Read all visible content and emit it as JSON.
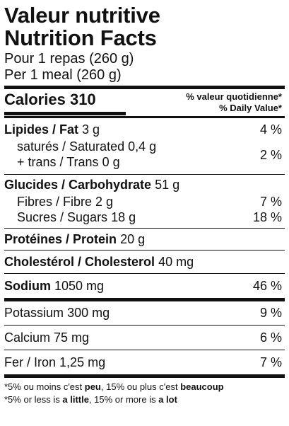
{
  "title_fr": "Valeur nutritive",
  "title_en": "Nutrition Facts",
  "serving_fr": "Pour 1 repas (260 g)",
  "serving_en": "Per 1 meal (260 g)",
  "calories_label": "Calories",
  "calories_value": "310",
  "dv_header_fr": "% valeur quotidienne*",
  "dv_header_en": "% Daily Value*",
  "fat": {
    "label": "Lipides / Fat",
    "amount": "3 g",
    "pct": "4 %"
  },
  "saturated": {
    "label": "saturés / Saturated",
    "amount": "0,4 g"
  },
  "trans": {
    "label": "+ trans / Trans",
    "amount": "0 g",
    "pct": "2 %"
  },
  "carbohydrate": {
    "label": "Glucides / Carbohydrate",
    "amount": "51 g"
  },
  "fibre": {
    "label": "Fibres / Fibre",
    "amount": "2 g",
    "pct": "7 %"
  },
  "sugars": {
    "label": "Sucres / Sugars",
    "amount": "18 g",
    "pct": "18 %"
  },
  "protein": {
    "label": "Protéines / Protein",
    "amount": "20 g"
  },
  "cholesterol": {
    "label": "Cholestérol / Cholesterol",
    "amount": "40 mg"
  },
  "sodium": {
    "label": "Sodium",
    "amount": "1050 mg",
    "pct": "46 %"
  },
  "potassium": {
    "label": "Potassium",
    "amount": "300 mg",
    "pct": "9 %"
  },
  "calcium": {
    "label": "Calcium",
    "amount": "75 mg",
    "pct": "6 %"
  },
  "iron": {
    "label": "Fer / Iron",
    "amount": "1,25 mg",
    "pct": "7 %"
  },
  "footnote_fr": {
    "part1": "*5% ou moins c'est ",
    "peu": "peu",
    "part2": ", 15% ou plus c'est ",
    "beaucoup": "beaucoup"
  },
  "footnote_en": {
    "part1": "*5% or less is ",
    "little": "a little",
    "part2": ", 15% or more is ",
    "lot": "a lot"
  }
}
